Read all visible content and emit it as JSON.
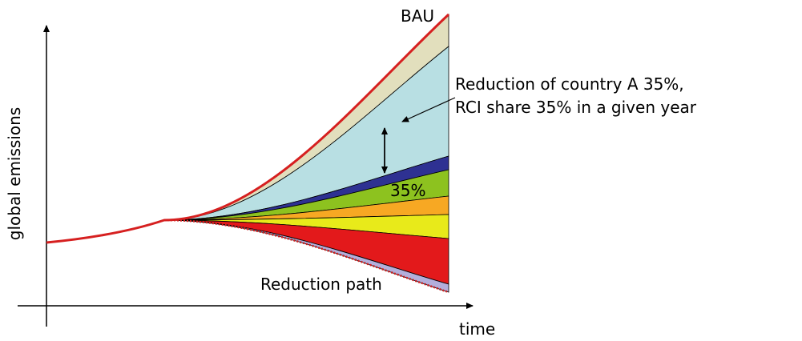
{
  "labels": {
    "bau": "BAU",
    "annotation": [
      "Reduction of country A 35%,",
      "RCI share 35% in a given year"
    ],
    "gap": "35%",
    "y_axis": "global emissions",
    "x_axis": "time",
    "reduction_path": "Reduction path"
  }
}
